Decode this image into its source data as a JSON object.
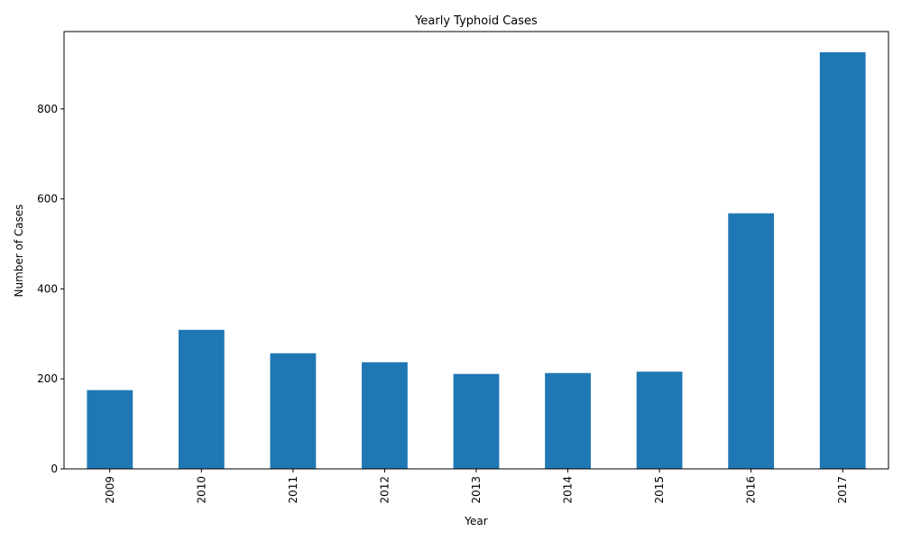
{
  "chart_data": {
    "type": "bar",
    "title": "Yearly Typhoid Cases",
    "xlabel": "Year",
    "ylabel": "Number of Cases",
    "categories": [
      "2009",
      "2010",
      "2011",
      "2012",
      "2013",
      "2014",
      "2015",
      "2016",
      "2017"
    ],
    "values": [
      175,
      309,
      257,
      237,
      211,
      213,
      216,
      568,
      926
    ],
    "ylim": [
      0,
      972
    ],
    "yticks": [
      0,
      200,
      400,
      600,
      800
    ],
    "bar_color": "#1f77b4",
    "grid": false,
    "legend": "none"
  }
}
